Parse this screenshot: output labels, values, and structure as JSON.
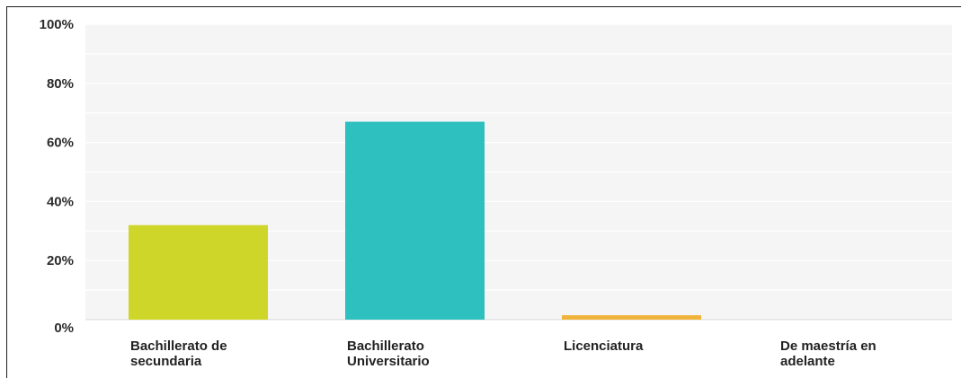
{
  "chart_data": {
    "type": "bar",
    "categories": [
      [
        "Bachillerato de",
        "secundaria"
      ],
      [
        "Bachillerato",
        "Universitario"
      ],
      [
        "Licenciatura"
      ],
      [
        "De maestría en",
        "adelante"
      ]
    ],
    "values": [
      32,
      67,
      1.5,
      0
    ],
    "colors": [
      "#cfd62a",
      "#2ebfbf",
      "#f0b43c",
      "#9e9e9e"
    ],
    "ylim": [
      0,
      100
    ],
    "yticks": [
      "0%",
      "20%",
      "40%",
      "60%",
      "80%",
      "100%"
    ],
    "grid": true,
    "legend": "none",
    "title": "",
    "xlabel": "",
    "ylabel": ""
  }
}
